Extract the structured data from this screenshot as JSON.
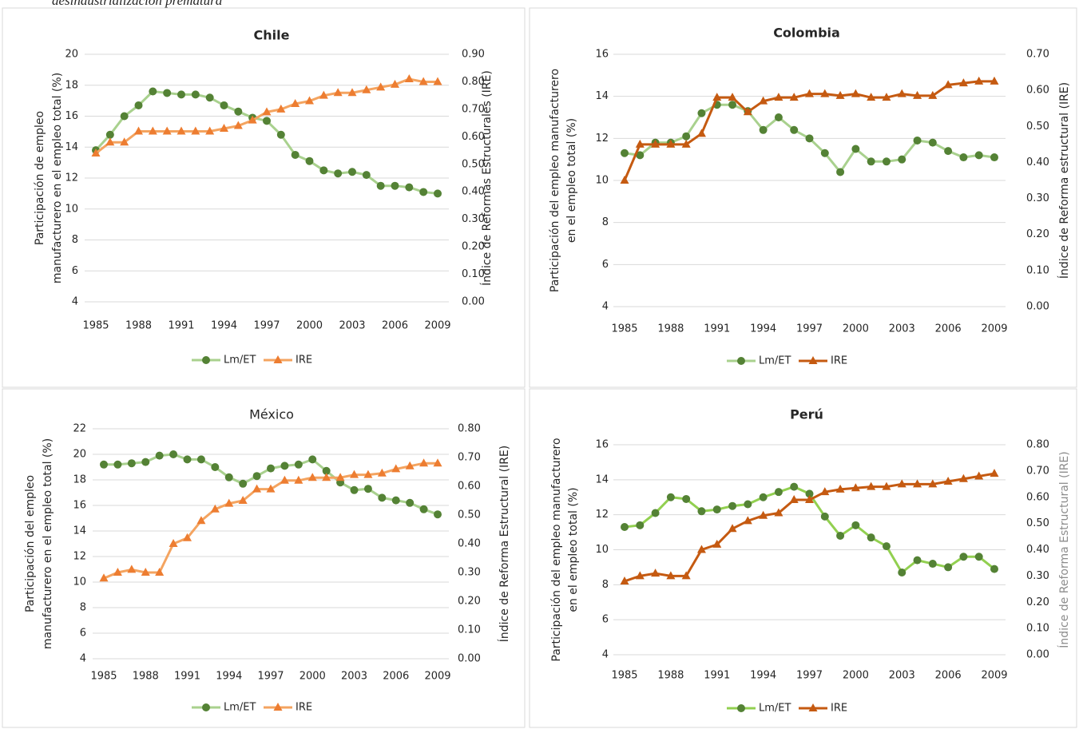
{
  "caption": "desindustrialización prematura",
  "chart_data": [
    {
      "type": "line",
      "title": "Chile",
      "title_bold": true,
      "ylabel": [
        "Participación de empleo",
        "manufacturero en el empleo total (%)"
      ],
      "y2label": "Índice de Reformas Estructurales (IRE)",
      "y2label_color": "#262626",
      "x": [
        1985,
        1986,
        1987,
        1988,
        1989,
        1990,
        1991,
        1992,
        1993,
        1994,
        1995,
        1996,
        1997,
        1998,
        1999,
        2000,
        2001,
        2002,
        2003,
        2004,
        2005,
        2006,
        2007,
        2008,
        2009
      ],
      "xlim": [
        1985,
        2009
      ],
      "xticks": [
        1985,
        1988,
        1991,
        1994,
        1997,
        2000,
        2003,
        2006,
        2009
      ],
      "ylim": [
        4,
        20
      ],
      "yticks": [
        4,
        6,
        8,
        10,
        12,
        14,
        16,
        18,
        20
      ],
      "y2lim": [
        0,
        0.9
      ],
      "y2ticks": [
        {
          "value": 0,
          "label": "0.00"
        },
        {
          "value": 0.1,
          "label": "0.10"
        },
        {
          "value": 0.2,
          "label": "0.20"
        },
        {
          "value": 0.3,
          "label": "0.30"
        },
        {
          "value": 0.4,
          "label": "0.40"
        },
        {
          "value": 0.5,
          "label": "0.50"
        },
        {
          "value": 0.6,
          "label": "0.60"
        },
        {
          "value": 0.7,
          "label": "0.70"
        },
        {
          "value": 0.8,
          "label": "0.80"
        },
        {
          "value": 0.9,
          "label": "0.90"
        }
      ],
      "grid": true,
      "series": [
        {
          "name": "Lm/ET",
          "color": "#a9d18e",
          "marker_color": "#548235",
          "marker": "circle",
          "values": [
            13.8,
            14.8,
            16.0,
            16.7,
            17.6,
            17.5,
            17.4,
            17.4,
            17.2,
            16.7,
            16.3,
            15.9,
            15.7,
            14.8,
            13.5,
            13.1,
            12.5,
            12.3,
            12.4,
            12.2,
            11.5,
            11.5,
            11.4,
            11.1,
            11.0
          ]
        },
        {
          "name": "IRE",
          "color": "#f4a460",
          "marker_color": "#ed7d31",
          "marker": "triangle",
          "axis": "y2",
          "values": [
            0.54,
            0.58,
            0.58,
            0.62,
            0.62,
            0.62,
            0.62,
            0.62,
            0.62,
            0.63,
            0.64,
            0.66,
            0.69,
            0.7,
            0.72,
            0.73,
            0.75,
            0.76,
            0.76,
            0.77,
            0.78,
            0.79,
            0.81,
            0.8,
            0.8
          ]
        }
      ]
    },
    {
      "type": "line",
      "title": "Colombia",
      "title_bold": true,
      "ylabel": [
        "Participación del empleo manufacturero",
        "en el empleo total (%)"
      ],
      "y2label": "Índice de Reforma estructural (IRE)",
      "y2label_color": "#262626",
      "x": [
        1985,
        1986,
        1987,
        1988,
        1989,
        1990,
        1991,
        1992,
        1993,
        1994,
        1995,
        1996,
        1997,
        1998,
        1999,
        2000,
        2001,
        2002,
        2003,
        2004,
        2005,
        2006,
        2007,
        2008,
        2009
      ],
      "xlim": [
        1985,
        2009
      ],
      "xticks": [
        1985,
        1988,
        1991,
        1994,
        1997,
        2000,
        2003,
        2006,
        2009
      ],
      "ylim": [
        4,
        16
      ],
      "yticks": [
        4,
        6,
        8,
        10,
        12,
        14,
        16
      ],
      "y2lim": [
        0,
        0.7
      ],
      "y2ticks": [
        {
          "value": 0,
          "label": "0.00"
        },
        {
          "value": 0.1,
          "label": "0.10"
        },
        {
          "value": 0.2,
          "label": "0.20"
        },
        {
          "value": 0.3,
          "label": "0.30"
        },
        {
          "value": 0.4,
          "label": "0.40"
        },
        {
          "value": 0.5,
          "label": "0.50"
        },
        {
          "value": 0.6,
          "label": "0.60"
        },
        {
          "value": 0.7,
          "label": "0.70"
        }
      ],
      "grid": true,
      "series": [
        {
          "name": "Lm/ET",
          "color": "#a9d18e",
          "marker_color": "#548235",
          "marker": "circle",
          "values": [
            11.3,
            11.2,
            11.8,
            11.8,
            12.1,
            13.2,
            13.6,
            13.6,
            13.3,
            12.4,
            13.0,
            12.4,
            12.0,
            11.3,
            10.4,
            11.5,
            10.9,
            10.9,
            11.0,
            11.9,
            11.8,
            11.4,
            11.1,
            11.2,
            11.1
          ]
        },
        {
          "name": "IRE",
          "color": "#c55a11",
          "marker_color": "#c55a11",
          "marker": "triangle",
          "axis": "y2",
          "values": [
            0.35,
            0.45,
            0.45,
            0.45,
            0.45,
            0.48,
            0.58,
            0.58,
            0.54,
            0.57,
            0.58,
            0.58,
            0.59,
            0.59,
            0.585,
            0.59,
            0.58,
            0.58,
            0.59,
            0.585,
            0.585,
            0.615,
            0.62,
            0.625,
            0.625
          ]
        }
      ]
    },
    {
      "type": "line",
      "title": "México",
      "title_bold": false,
      "ylabel": [
        "Participación del empleo",
        "manufacturero en el empleo total (%)"
      ],
      "y2label": "Índice de Reforma Estructural (IRE)",
      "y2label_color": "#262626",
      "x": [
        1985,
        1986,
        1987,
        1988,
        1989,
        1990,
        1991,
        1992,
        1993,
        1994,
        1995,
        1996,
        1997,
        1998,
        1999,
        2000,
        2001,
        2002,
        2003,
        2004,
        2005,
        2006,
        2007,
        2008,
        2009
      ],
      "xlim": [
        1985,
        2009
      ],
      "xticks": [
        1985,
        1988,
        1991,
        1994,
        1997,
        2000,
        2003,
        2006,
        2009
      ],
      "ylim": [
        4,
        22
      ],
      "yticks": [
        4,
        6,
        8,
        10,
        12,
        14,
        16,
        18,
        20,
        22
      ],
      "y2lim": [
        0,
        0.8
      ],
      "y2ticks": [
        {
          "value": 0,
          "label": "0.00"
        },
        {
          "value": 0.1,
          "label": "0.10"
        },
        {
          "value": 0.2,
          "label": "0.20"
        },
        {
          "value": 0.3,
          "label": "0.30"
        },
        {
          "value": 0.4,
          "label": "0.40"
        },
        {
          "value": 0.5,
          "label": "0.50"
        },
        {
          "value": 0.6,
          "label": "0.60"
        },
        {
          "value": 0.7,
          "label": "0.70"
        },
        {
          "value": 0.8,
          "label": "0.80"
        }
      ],
      "grid": true,
      "series": [
        {
          "name": "Lm/ET",
          "color": "#a9d18e",
          "marker_color": "#548235",
          "marker": "circle",
          "values": [
            19.2,
            19.2,
            19.3,
            19.4,
            19.9,
            20.0,
            19.6,
            19.6,
            19.0,
            18.2,
            17.7,
            18.3,
            18.9,
            19.1,
            19.2,
            19.6,
            18.7,
            17.8,
            17.2,
            17.3,
            16.6,
            16.4,
            16.2,
            15.7,
            15.3
          ]
        },
        {
          "name": "IRE",
          "color": "#f4a460",
          "marker_color": "#ed7d31",
          "marker": "triangle",
          "axis": "y2",
          "values": [
            0.28,
            0.3,
            0.31,
            0.3,
            0.3,
            0.4,
            0.42,
            0.48,
            0.52,
            0.54,
            0.55,
            0.59,
            0.59,
            0.62,
            0.62,
            0.63,
            0.63,
            0.63,
            0.64,
            0.64,
            0.645,
            0.66,
            0.67,
            0.68,
            0.68
          ]
        }
      ]
    },
    {
      "type": "line",
      "title": "Perú",
      "title_bold": true,
      "ylabel": [
        "Participación del empleo manufacturero",
        "en el empleo total (%)"
      ],
      "y2label": "Índice de Reforma Estructural (IRE)",
      "y2label_color": "#8c8c8c",
      "x": [
        1985,
        1986,
        1987,
        1988,
        1989,
        1990,
        1991,
        1992,
        1993,
        1994,
        1995,
        1996,
        1997,
        1998,
        1999,
        2000,
        2001,
        2002,
        2003,
        2004,
        2005,
        2006,
        2007,
        2008,
        2009
      ],
      "xlim": [
        1985,
        2009
      ],
      "xticks": [
        1985,
        1988,
        1991,
        1994,
        1997,
        2000,
        2003,
        2006,
        2009
      ],
      "ylim": [
        4,
        16
      ],
      "yticks": [
        4,
        6,
        8,
        10,
        12,
        14,
        16
      ],
      "y2lim": [
        0,
        0.8
      ],
      "y2ticks": [
        {
          "value": 0,
          "label": "0.00"
        },
        {
          "value": 0.1,
          "label": "0.10"
        },
        {
          "value": 0.2,
          "label": "0.20"
        },
        {
          "value": 0.3,
          "label": "0.30"
        },
        {
          "value": 0.4,
          "label": "0.40"
        },
        {
          "value": 0.5,
          "label": "0.50"
        },
        {
          "value": 0.6,
          "label": "0.60"
        },
        {
          "value": 0.7,
          "label": "0.70"
        },
        {
          "value": 0.8,
          "label": "0.80"
        }
      ],
      "grid": true,
      "series": [
        {
          "name": "Lm/ET",
          "color": "#92d050",
          "marker_color": "#548235",
          "marker": "circle",
          "values": [
            11.3,
            11.4,
            12.1,
            13.0,
            12.9,
            12.2,
            12.3,
            12.5,
            12.6,
            13.0,
            13.3,
            13.6,
            13.2,
            11.9,
            10.8,
            11.4,
            10.7,
            10.2,
            8.7,
            9.4,
            9.2,
            9.0,
            9.6,
            9.6,
            8.9
          ]
        },
        {
          "name": "IRE",
          "color": "#c55a11",
          "marker_color": "#c55a11",
          "marker": "triangle",
          "axis": "y2",
          "values": [
            0.28,
            0.3,
            0.31,
            0.3,
            0.3,
            0.4,
            0.42,
            0.48,
            0.51,
            0.53,
            0.54,
            0.59,
            0.59,
            0.62,
            0.63,
            0.635,
            0.64,
            0.64,
            0.65,
            0.65,
            0.65,
            0.66,
            0.67,
            0.68,
            0.69
          ]
        }
      ]
    }
  ]
}
